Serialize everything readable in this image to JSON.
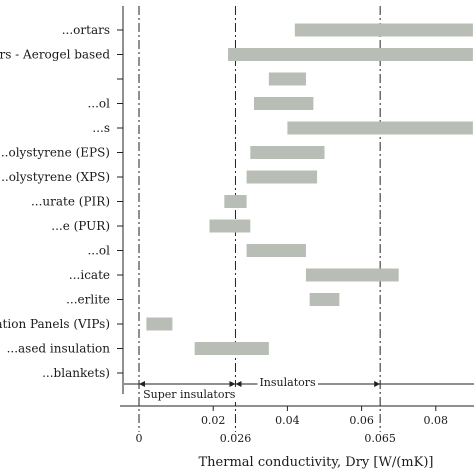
{
  "chart_data": {
    "type": "bar",
    "subtype": "horizontal-range",
    "xlabel": "Thermal conductivity, Dry [W/(mK)]",
    "xlim": [
      0,
      0.08
    ],
    "ticks_major": [
      "0.02",
      "0.04",
      "0.06",
      "0.08"
    ],
    "ticks_minor": [
      "0",
      "0.026",
      "0.065"
    ],
    "bar_color": "#b8bdb6",
    "grid": false,
    "categories": [
      "...ortars",
      "...ortars - Aerogel based",
      "",
      "...ol",
      "...s",
      "...olystyrene (EPS)",
      "...olystyrene (XPS)",
      "...urate (PIR)",
      "...e (PUR)",
      "...ol",
      "...icate",
      "...erlite",
      "...sulation Panels (VIPs)",
      "...ased insulation",
      "...blankets)"
    ],
    "ranges": [
      [
        0.042,
        0.09
      ],
      [
        0.024,
        0.09
      ],
      [
        0.035,
        0.045
      ],
      [
        0.031,
        0.047
      ],
      [
        0.04,
        0.09
      ],
      [
        0.03,
        0.05
      ],
      [
        0.029,
        0.048
      ],
      [
        0.023,
        0.029
      ],
      [
        0.019,
        0.03
      ],
      [
        0.029,
        0.045
      ],
      [
        0.045,
        0.07
      ],
      [
        0.046,
        0.054
      ],
      [
        0.002,
        0.009
      ],
      [
        0.015,
        0.035
      ],
      null
    ],
    "reference_lines": [
      0,
      0.026,
      0.065
    ],
    "zones": [
      {
        "label": "Super insulators",
        "from": 0,
        "to": 0.026
      },
      {
        "label": "Insulators",
        "from": 0.026,
        "to": 0.065
      }
    ]
  }
}
